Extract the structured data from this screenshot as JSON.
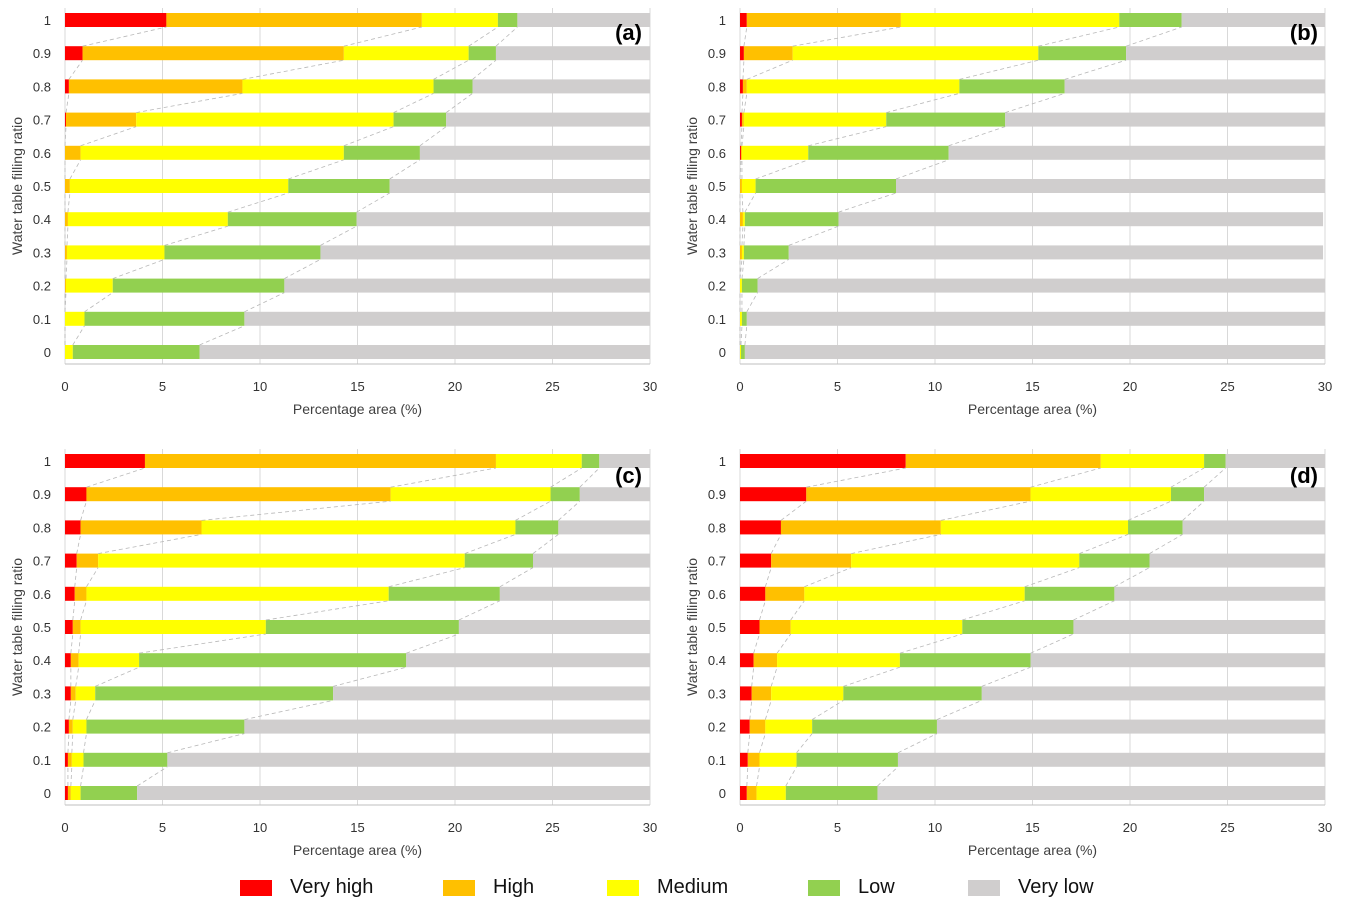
{
  "categories_legend": [
    {
      "name": "Very high",
      "color": "#FF0000"
    },
    {
      "name": "High",
      "color": "#FFC000"
    },
    {
      "name": "Medium",
      "color": "#FFFF00"
    },
    {
      "name": "Low",
      "color": "#92D050"
    },
    {
      "name": "Very low",
      "color": "#D0CECE"
    }
  ],
  "chart_data": [
    {
      "type": "bar",
      "orientation": "horizontal-stacked",
      "panel_label": "(a)",
      "xlabel": "Percentage area (%)",
      "ylabel": "Water table filling ratio",
      "xlim": [
        0,
        30
      ],
      "xticks": [
        "0",
        "5",
        "10",
        "15",
        "20",
        "25",
        "30"
      ],
      "categories": [
        "0",
        "0.1",
        "0.2",
        "0.3",
        "0.4",
        "0.5",
        "0.6",
        "0.7",
        "0.8",
        "0.9",
        "1"
      ],
      "series": [
        {
          "name": "Very high",
          "values": [
            0,
            0,
            0,
            0,
            0,
            0,
            0,
            0.05,
            0.2,
            0.9,
            5.2
          ]
        },
        {
          "name": "High",
          "values": [
            0,
            0,
            0.05,
            0.1,
            0.15,
            0.25,
            0.8,
            3.6,
            8.9,
            13.4,
            13.1
          ]
        },
        {
          "name": "Medium",
          "values": [
            0.4,
            1.0,
            2.4,
            5.0,
            8.2,
            11.2,
            13.5,
            13.2,
            9.8,
            6.4,
            3.9
          ]
        },
        {
          "name": "Low",
          "values": [
            6.5,
            8.2,
            8.8,
            8.0,
            6.6,
            5.2,
            3.9,
            2.7,
            2.0,
            1.4,
            1.0
          ]
        },
        {
          "name": "Very low",
          "values": [
            23.1,
            20.8,
            18.75,
            16.9,
            15.05,
            13.35,
            11.8,
            10.45,
            9.1,
            7.9,
            6.8
          ]
        }
      ]
    },
    {
      "type": "bar",
      "orientation": "horizontal-stacked",
      "panel_label": "(b)",
      "xlabel": "Percentage area (%)",
      "ylabel": "Water table filling ratio",
      "xlim": [
        0,
        30
      ],
      "xticks": [
        "0",
        "5",
        "10",
        "15",
        "20",
        "25",
        "30"
      ],
      "categories": [
        "0",
        "0.1",
        "0.2",
        "0.3",
        "0.4",
        "0.5",
        "0.6",
        "0.7",
        "0.8",
        "0.9",
        "1"
      ],
      "series": [
        {
          "name": "Very high",
          "values": [
            0,
            0,
            0,
            0,
            0,
            0,
            0.05,
            0.1,
            0.15,
            0.2,
            0.35
          ]
        },
        {
          "name": "High",
          "values": [
            0,
            0,
            0,
            0.1,
            0.15,
            0.1,
            0.05,
            0.1,
            0.2,
            2.5,
            7.9
          ]
        },
        {
          "name": "Medium",
          "values": [
            0.05,
            0.1,
            0.1,
            0.1,
            0.1,
            0.7,
            3.4,
            7.3,
            10.9,
            12.6,
            11.2
          ]
        },
        {
          "name": "Low",
          "values": [
            0.2,
            0.25,
            0.8,
            2.3,
            4.8,
            7.2,
            7.2,
            6.1,
            5.4,
            4.5,
            3.2
          ]
        },
        {
          "name": "Very low",
          "values": [
            29.75,
            29.65,
            29.1,
            27.4,
            24.85,
            22.0,
            19.3,
            16.4,
            13.35,
            10.2,
            7.35
          ]
        }
      ]
    },
    {
      "type": "bar",
      "orientation": "horizontal-stacked",
      "panel_label": "(c)",
      "xlabel": "Percentage area (%)",
      "ylabel": "Water table filling ratio",
      "xlim": [
        0,
        30
      ],
      "xticks": [
        "0",
        "5",
        "10",
        "15",
        "20",
        "25",
        "30"
      ],
      "categories": [
        "0",
        "0.1",
        "0.2",
        "0.3",
        "0.4",
        "0.5",
        "0.6",
        "0.7",
        "0.8",
        "0.9",
        "1"
      ],
      "series": [
        {
          "name": "Very high",
          "values": [
            0.15,
            0.15,
            0.2,
            0.3,
            0.3,
            0.4,
            0.5,
            0.6,
            0.8,
            1.1,
            4.1
          ]
        },
        {
          "name": "High",
          "values": [
            0.15,
            0.2,
            0.2,
            0.25,
            0.4,
            0.4,
            0.6,
            1.1,
            6.2,
            15.6,
            18.0
          ]
        },
        {
          "name": "Medium",
          "values": [
            0.5,
            0.6,
            0.7,
            1.0,
            3.1,
            9.5,
            15.5,
            18.8,
            16.1,
            8.2,
            4.4
          ]
        },
        {
          "name": "Low",
          "values": [
            2.9,
            4.3,
            8.1,
            12.2,
            13.7,
            9.9,
            5.7,
            3.5,
            2.2,
            1.5,
            0.9
          ]
        },
        {
          "name": "Very low",
          "values": [
            26.3,
            24.75,
            20.8,
            16.25,
            12.5,
            9.8,
            7.7,
            6.0,
            4.7,
            3.6,
            2.6
          ]
        }
      ]
    },
    {
      "type": "bar",
      "orientation": "horizontal-stacked",
      "panel_label": "(d)",
      "xlabel": "Percentage area (%)",
      "ylabel": "Water table filling ratio",
      "xlim": [
        0,
        30
      ],
      "xticks": [
        "0",
        "5",
        "10",
        "15",
        "20",
        "25",
        "30"
      ],
      "categories": [
        "0",
        "0.1",
        "0.2",
        "0.3",
        "0.4",
        "0.5",
        "0.6",
        "0.7",
        "0.8",
        "0.9",
        "1"
      ],
      "series": [
        {
          "name": "Very high",
          "values": [
            0.35,
            0.4,
            0.5,
            0.6,
            0.7,
            1.0,
            1.3,
            1.6,
            2.1,
            3.4,
            8.5
          ]
        },
        {
          "name": "High",
          "values": [
            0.5,
            0.6,
            0.8,
            1.0,
            1.2,
            1.6,
            2.0,
            4.1,
            8.2,
            11.5,
            10.0
          ]
        },
        {
          "name": "Medium",
          "values": [
            1.5,
            1.9,
            2.4,
            3.7,
            6.3,
            8.8,
            11.3,
            11.7,
            9.6,
            7.2,
            5.3
          ]
        },
        {
          "name": "Low",
          "values": [
            4.7,
            5.2,
            6.4,
            7.1,
            6.7,
            5.7,
            4.6,
            3.6,
            2.8,
            1.7,
            1.1
          ]
        },
        {
          "name": "Very low",
          "values": [
            22.95,
            21.9,
            19.9,
            17.6,
            15.1,
            12.9,
            10.8,
            9.0,
            7.3,
            6.2,
            5.1
          ]
        }
      ]
    }
  ]
}
